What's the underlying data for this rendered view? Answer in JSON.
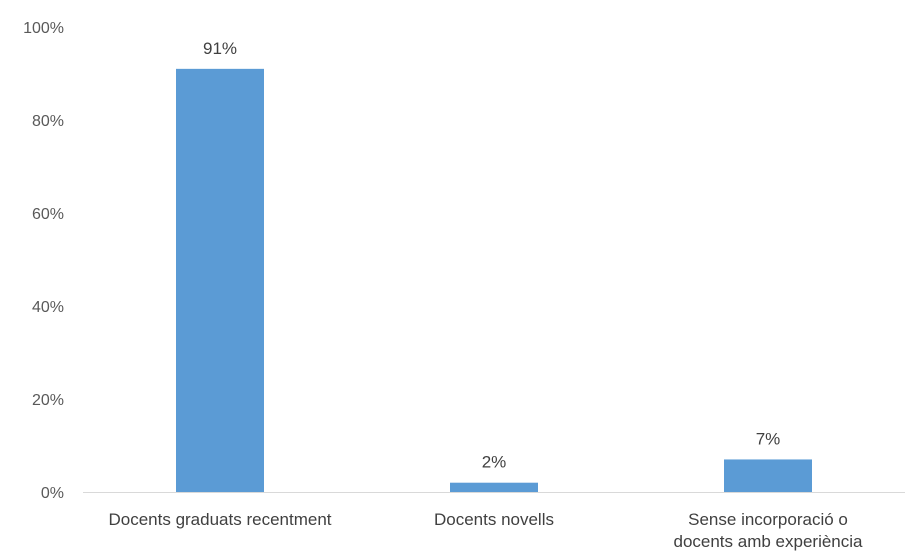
{
  "chart_data": {
    "type": "bar",
    "categories": [
      [
        "Docents graduats recentment"
      ],
      [
        "Docents novells"
      ],
      [
        "Sense incorporació o",
        "docents amb experiència"
      ]
    ],
    "values": [
      91,
      2,
      7
    ],
    "data_labels": [
      "91%",
      "2%",
      "7%"
    ],
    "y_ticks": [
      "0%",
      "20%",
      "40%",
      "60%",
      "80%",
      "100%"
    ],
    "ylim": [
      0,
      100
    ],
    "grid": false,
    "legend": "none",
    "colors": {
      "bar": "#5B9BD5",
      "axis": "#D9D9D9",
      "tick_text": "#595959",
      "label_text": "#404040"
    }
  }
}
